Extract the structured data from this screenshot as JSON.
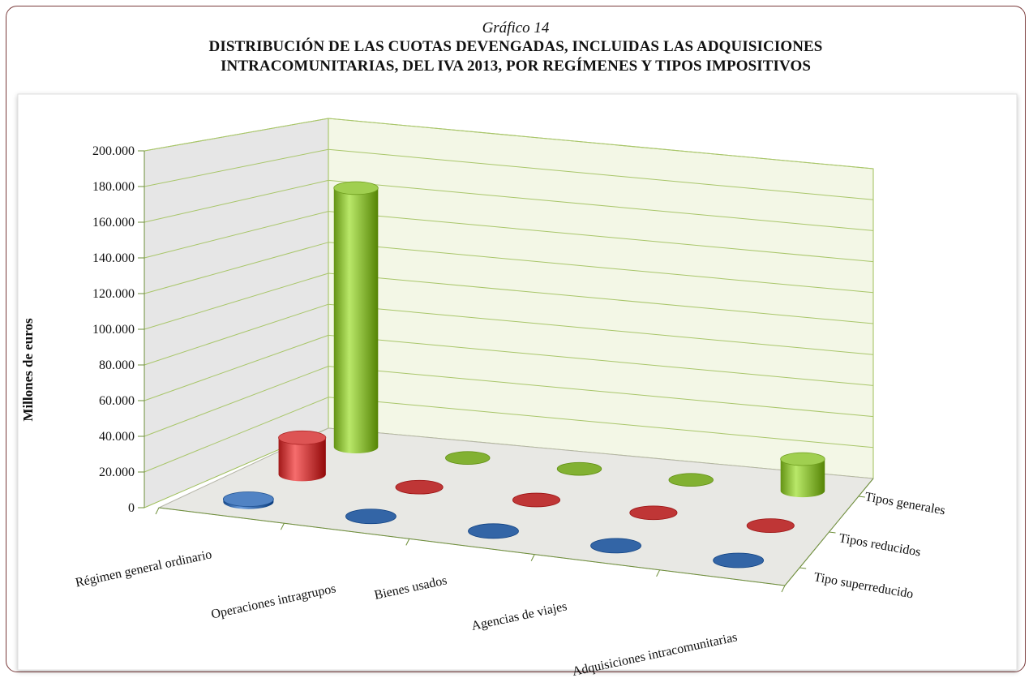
{
  "subtitle": "Gráfico 14",
  "title_line1": "DISTRIBUCIÓN DE LAS CUOTAS DEVENGADAS, INCLUIDAS LAS ADQUISICIONES",
  "title_line2": "INTRACOMUNITARIAS, DEL IVA 2013, POR REGÍMENES Y TIPOS IMPOSITIVOS",
  "colors": {
    "tipos_generales": "#8cbb3c",
    "tipos_reducidos": "#c94040",
    "tipo_superreducido": "#3d6fb0"
  },
  "chart_data": {
    "type": "bar",
    "style": "3d-cylinder",
    "ylabel": "Millones de euros",
    "ylim": [
      0,
      200000
    ],
    "y_ticks": [
      "0",
      "20.000",
      "40.000",
      "60.000",
      "80.000",
      "100.000",
      "120.000",
      "140.000",
      "160.000",
      "180.000",
      "200.000"
    ],
    "categories": [
      "Régimen general ordinario",
      "Operaciones intragrupos",
      "Bienes usados",
      "Agencias de viajes",
      "Adquisiciones intracomunitarias"
    ],
    "series": [
      {
        "name": "Tipo superreducido",
        "values": [
          1500,
          0,
          0,
          0,
          0
        ]
      },
      {
        "name": "Tipos reducidos",
        "values": [
          22000,
          0,
          0,
          0,
          0
        ]
      },
      {
        "name": "Tipos generales",
        "values": [
          163000,
          0,
          0,
          0,
          20000
        ]
      }
    ],
    "grid": true
  }
}
